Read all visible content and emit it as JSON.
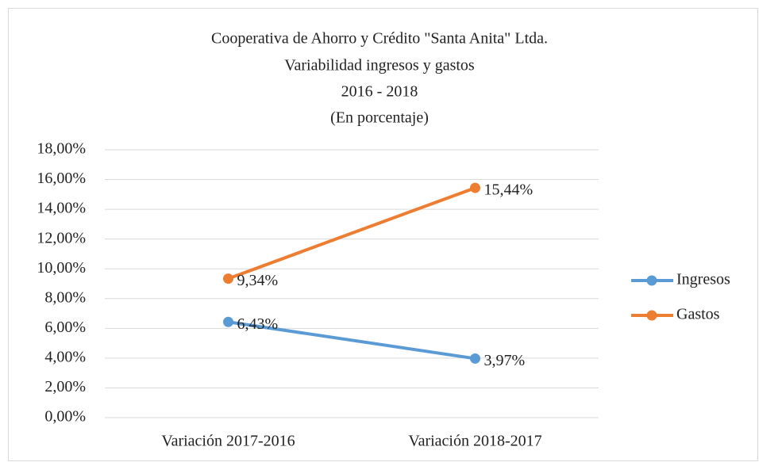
{
  "chart_data": {
    "type": "line",
    "title": "Cooperativa de Ahorro y Crédito \"Santa Anita\" Ltda.",
    "subtitle": [
      "Variabilidad ingresos y gastos",
      "2016 - 2018",
      "(En porcentaje)"
    ],
    "categories": [
      "Variación 2017-2016",
      "Variación 2018-2017"
    ],
    "series": [
      {
        "name": "Ingresos",
        "color": "#5b9bd5",
        "values": [
          6.43,
          3.97
        ],
        "value_labels": [
          "6,43%",
          "3,97%"
        ]
      },
      {
        "name": "Gastos",
        "color": "#ed7d31",
        "values": [
          9.34,
          15.44
        ],
        "value_labels": [
          "9,34%",
          "15,44%"
        ]
      }
    ],
    "ylim": [
      0,
      18
    ],
    "yticks": [
      {
        "value": 0,
        "label": "0,00%"
      },
      {
        "value": 2,
        "label": "2,00%"
      },
      {
        "value": 4,
        "label": "4,00%"
      },
      {
        "value": 6,
        "label": "6,00%"
      },
      {
        "value": 8,
        "label": "8,00%"
      },
      {
        "value": 10,
        "label": "10,00%"
      },
      {
        "value": 12,
        "label": "12,00%"
      },
      {
        "value": 14,
        "label": "14,00%"
      },
      {
        "value": 16,
        "label": "16,00%"
      },
      {
        "value": 18,
        "label": "18,00%"
      }
    ],
    "grid": true,
    "legend": "right"
  }
}
